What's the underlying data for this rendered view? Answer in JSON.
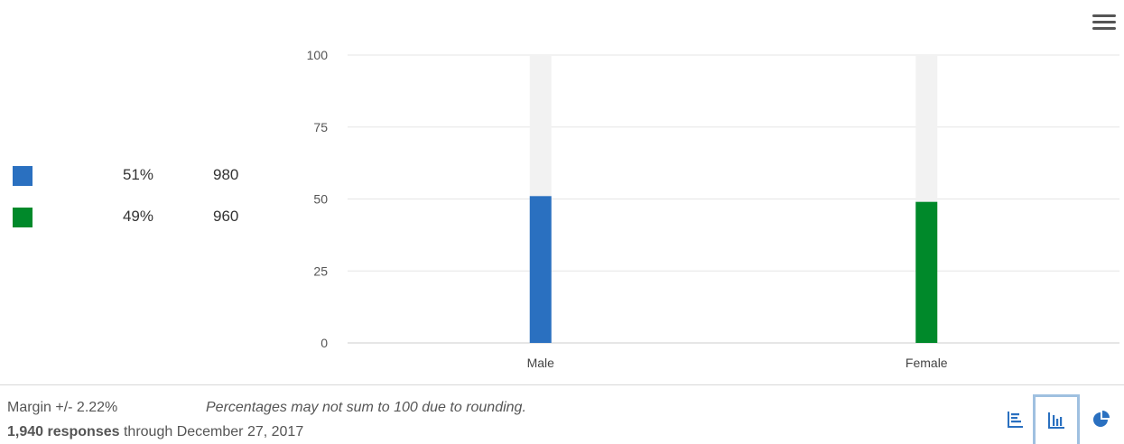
{
  "legend": [
    {
      "pct": "51%",
      "count": "980",
      "color": "#2a70c0"
    },
    {
      "pct": "49%",
      "count": "960",
      "color": "#00892a"
    }
  ],
  "chart_data": {
    "type": "bar",
    "categories": [
      "Male",
      "Female"
    ],
    "values": [
      51,
      49
    ],
    "colors": [
      "#2a70c0",
      "#00892a"
    ],
    "background_color": "#f2f2f2",
    "ylim": [
      0,
      100
    ],
    "yticks": [
      "0",
      "25",
      "50",
      "75",
      "100"
    ],
    "grid": true,
    "title": "",
    "xlabel": "",
    "ylabel": ""
  },
  "footer": {
    "margin": "Margin +/- 2.22%",
    "note": "Percentages may not sum to 100 due to rounding.",
    "responses_bold": "1,940 responses",
    "responses_rest": " through December 27, 2017"
  },
  "toolbar": {
    "views": [
      {
        "icon": "horizontal-bar-chart-icon",
        "active": false
      },
      {
        "icon": "vertical-bar-chart-icon",
        "active": true
      },
      {
        "icon": "pie-chart-icon",
        "active": false
      }
    ]
  }
}
